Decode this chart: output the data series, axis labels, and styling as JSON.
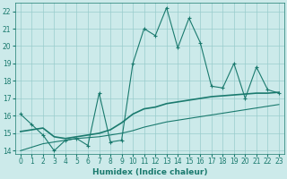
{
  "xlabel": "Humidex (Indice chaleur)",
  "x_values": [
    0,
    1,
    2,
    3,
    4,
    5,
    6,
    7,
    8,
    9,
    10,
    11,
    12,
    13,
    14,
    15,
    16,
    17,
    18,
    19,
    20,
    21,
    22,
    23
  ],
  "line1_y": [
    16.1,
    15.5,
    14.9,
    14.0,
    14.6,
    14.7,
    14.3,
    17.3,
    14.5,
    14.6,
    19.0,
    21.0,
    20.6,
    22.2,
    19.9,
    21.6,
    20.2,
    17.7,
    17.6,
    19.0,
    17.0,
    18.8,
    17.5,
    17.3
  ],
  "line2_y": [
    15.1,
    15.2,
    15.3,
    14.8,
    14.7,
    14.8,
    14.9,
    15.0,
    15.2,
    15.6,
    16.1,
    16.4,
    16.5,
    16.7,
    16.8,
    16.9,
    17.0,
    17.1,
    17.15,
    17.2,
    17.25,
    17.3,
    17.3,
    17.35
  ],
  "line3_y": [
    14.0,
    14.2,
    14.4,
    14.5,
    14.6,
    14.7,
    14.75,
    14.8,
    14.9,
    15.0,
    15.15,
    15.35,
    15.5,
    15.65,
    15.75,
    15.85,
    15.95,
    16.05,
    16.15,
    16.25,
    16.35,
    16.45,
    16.55,
    16.65
  ],
  "line_color": "#1a7a6e",
  "bg_color": "#cceaea",
  "grid_color": "#99cccc",
  "ylim": [
    13.8,
    22.5
  ],
  "xlim": [
    -0.5,
    23.5
  ],
  "yticks": [
    14,
    15,
    16,
    17,
    18,
    19,
    20,
    21,
    22
  ],
  "xticks": [
    0,
    1,
    2,
    3,
    4,
    5,
    6,
    7,
    8,
    9,
    10,
    11,
    12,
    13,
    14,
    15,
    16,
    17,
    18,
    19,
    20,
    21,
    22,
    23
  ]
}
